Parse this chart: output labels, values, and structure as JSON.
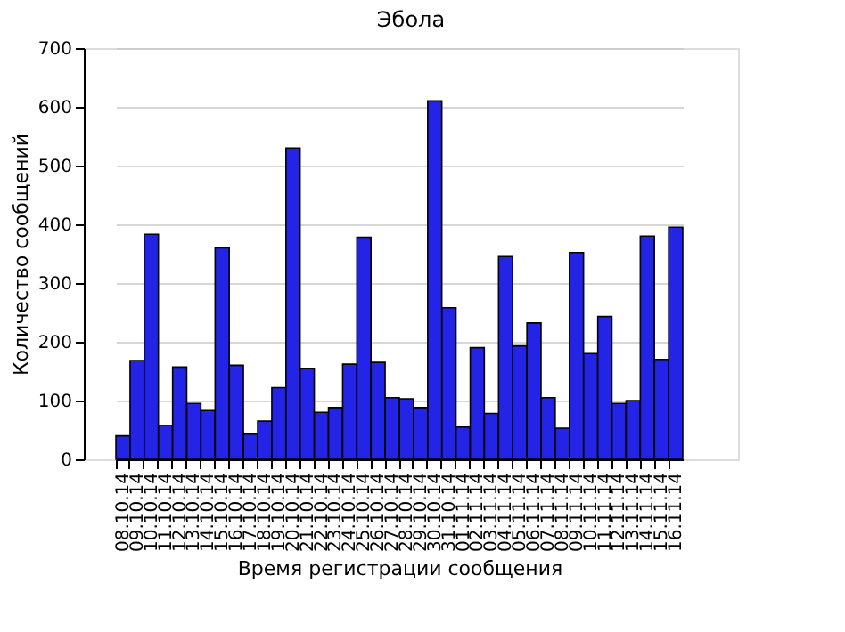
{
  "chart_data": {
    "type": "bar",
    "title": "Эбола",
    "xlabel": "Время регистрации сообщения",
    "ylabel": "Количество сообщений",
    "categories": [
      "08.10.14",
      "09.10.14",
      "10.10.14",
      "11.10.14",
      "12.10.14",
      "13.10.14",
      "14.10.14",
      "15.10.14",
      "16.10.14",
      "17.10.14",
      "18.10.14",
      "19.10.14",
      "20.10.14",
      "21.10.14",
      "22.10.14",
      "23.10.14",
      "24.10.14",
      "25.10.14",
      "26.10.14",
      "27.10.14",
      "28.10.14",
      "29.10.14",
      "30.10.14",
      "31.10.14",
      "01.11.14",
      "02.11.14",
      "03.11.14",
      "04.11.14",
      "05.11.14",
      "06.11.14",
      "07.11.14",
      "08.11.14",
      "09.11.14",
      "10.11.14",
      "11.11.14",
      "12.11.14",
      "13.11.14",
      "14.11.14",
      "15.11.14",
      "16.11.14"
    ],
    "values": [
      40,
      168,
      383,
      58,
      157,
      95,
      83,
      360,
      160,
      43,
      65,
      122,
      530,
      155,
      80,
      88,
      162,
      378,
      165,
      105,
      103,
      88,
      610,
      258,
      55,
      190,
      78,
      345,
      193,
      232,
      105,
      53,
      352,
      180,
      243,
      95,
      100,
      380,
      170,
      395
    ],
    "color": "#2424e6",
    "ylim": [
      0,
      700
    ],
    "yticks": [
      0,
      100,
      200,
      300,
      400,
      500,
      600,
      700
    ],
    "grid": "y"
  }
}
